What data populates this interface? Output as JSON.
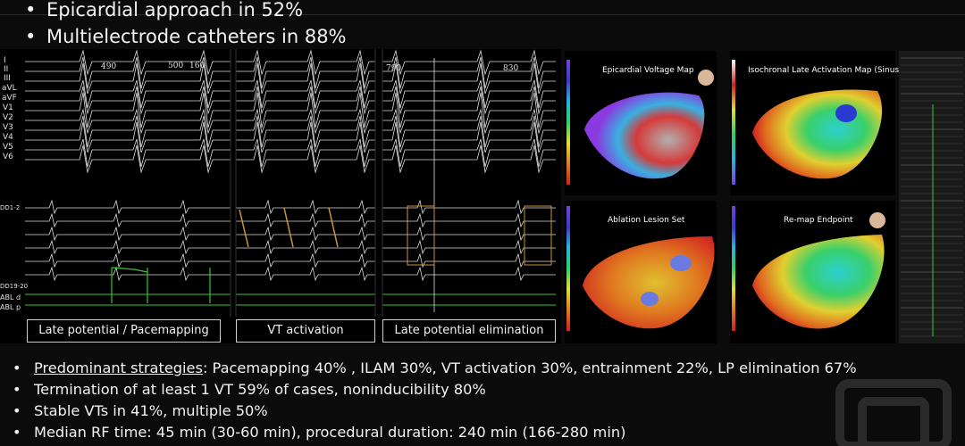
{
  "top_bullets": [
    "Epicardial approach in 52%",
    "Multielectrode catheters in 88%"
  ],
  "ecg_figure": {
    "surface_leads": [
      "I",
      "II",
      "III",
      "aVL",
      "aVF",
      "V1",
      "V2",
      "V3",
      "V4",
      "V5",
      "V6"
    ],
    "intracardiac_labels": [
      "DD1-2",
      "DD19-20",
      "ABL d",
      "ABL p"
    ],
    "interval_labels": [
      "490",
      "500",
      "160",
      "790",
      "830"
    ],
    "panel_labels": [
      "Late potential / Pacemapping",
      "VT activation",
      "Late potential elimination"
    ]
  },
  "maps": {
    "titles": [
      "Epicardial Voltage Map",
      "Isochronal Late Activation Map (Sinus)",
      "Ablation Lesion Set",
      "Re-map Endpoint"
    ]
  },
  "bottom_bullets": {
    "b1_lead": "Predominant strategies",
    "b1_rest": ": Pacemapping 40% , ILAM 30%, VT activation 30%, entrainment 22%, LP elimination 67%",
    "b2": "Termination of at least 1 VT 59% of cases, noninducibility 80%",
    "b3": "Stable VTs in 41%, multiple 50%",
    "b4": "Median RF time: 45 min (30-60 min), procedural duration: 240 min (166-280 min)"
  },
  "colors": {
    "background": "#0b0b0b",
    "text": "#f2f2f2",
    "trace": "#dcdcdc",
    "abl_trace": "#3cc43c",
    "highlight_box": "#c9963a"
  }
}
